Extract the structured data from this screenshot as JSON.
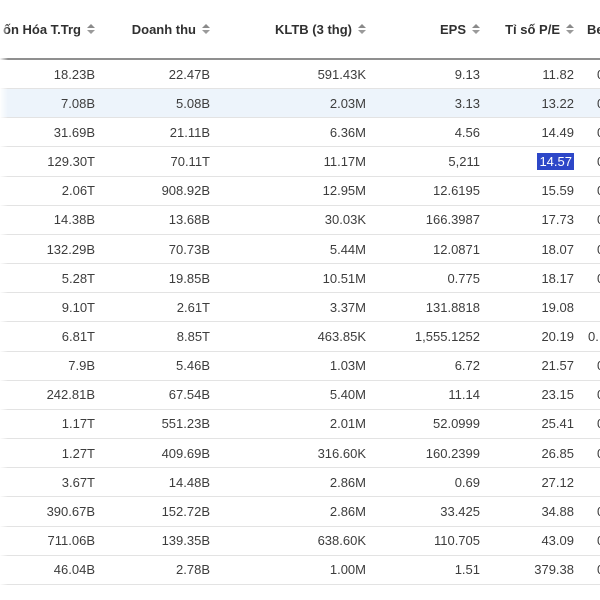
{
  "table": {
    "columns": [
      {
        "label": "ốn Hóa T.Trg",
        "sortable": true
      },
      {
        "label": "Doanh thu",
        "sortable": true
      },
      {
        "label": "KLTB (3 thg)",
        "sortable": true
      },
      {
        "label": "EPS",
        "sortable": true
      },
      {
        "label": "Tỉ số P/E",
        "sortable": true
      },
      {
        "label": "Be",
        "sortable": false
      }
    ],
    "rows": [
      {
        "cells": [
          "18.23B",
          "22.47B",
          "591.43K",
          "9.13",
          "11.82",
          "0"
        ]
      },
      {
        "cells": [
          "7.08B",
          "5.08B",
          "2.03M",
          "3.13",
          "13.22",
          "0"
        ]
      },
      {
        "cells": [
          "31.69B",
          "21.11B",
          "6.36M",
          "4.56",
          "14.49",
          "0"
        ]
      },
      {
        "cells": [
          "129.30T",
          "70.11T",
          "11.17M",
          "5,211",
          "14.57",
          "0"
        ]
      },
      {
        "cells": [
          "2.06T",
          "908.92B",
          "12.95M",
          "12.6195",
          "15.59",
          "0"
        ]
      },
      {
        "cells": [
          "14.38B",
          "13.68B",
          "30.03K",
          "166.3987",
          "17.73",
          "0"
        ]
      },
      {
        "cells": [
          "132.29B",
          "70.73B",
          "5.44M",
          "12.0871",
          "18.07",
          "0"
        ]
      },
      {
        "cells": [
          "5.28T",
          "19.85B",
          "10.51M",
          "0.775",
          "18.17",
          "0"
        ]
      },
      {
        "cells": [
          "9.10T",
          "2.61T",
          "3.37M",
          "131.8818",
          "19.08",
          ""
        ]
      },
      {
        "cells": [
          "6.81T",
          "8.85T",
          "463.85K",
          "1,555.1252",
          "20.19",
          "0."
        ]
      },
      {
        "cells": [
          "7.9B",
          "5.46B",
          "1.03M",
          "6.72",
          "21.57",
          "0"
        ]
      },
      {
        "cells": [
          "242.81B",
          "67.54B",
          "5.40M",
          "11.14",
          "23.15",
          "0"
        ]
      },
      {
        "cells": [
          "1.17T",
          "551.23B",
          "2.01M",
          "52.0999",
          "25.41",
          "0"
        ]
      },
      {
        "cells": [
          "1.27T",
          "409.69B",
          "316.60K",
          "160.2399",
          "26.85",
          "0"
        ]
      },
      {
        "cells": [
          "3.67T",
          "14.48B",
          "2.86M",
          "0.69",
          "27.12",
          ""
        ]
      },
      {
        "cells": [
          "390.67B",
          "152.72B",
          "2.86M",
          "33.425",
          "34.88",
          "0"
        ]
      },
      {
        "cells": [
          "711.06B",
          "139.35B",
          "638.60K",
          "110.705",
          "43.09",
          "0"
        ]
      },
      {
        "cells": [
          "46.04B",
          "2.78B",
          "1.00M",
          "1.51",
          "379.38",
          "0"
        ]
      }
    ],
    "highlighted_row_index": 1,
    "selection": {
      "row_index": 3,
      "column_index": 4,
      "value": "14.57"
    },
    "colors": {
      "selection_background": "#2d47c8",
      "selection_text": "#ffffff",
      "highlight_row_background": "#edf4fb",
      "row_separator": "#e3e3e3",
      "header_border": "#8f8f8f",
      "header_text": "#303030",
      "cell_text": "#3d3d3d"
    }
  }
}
